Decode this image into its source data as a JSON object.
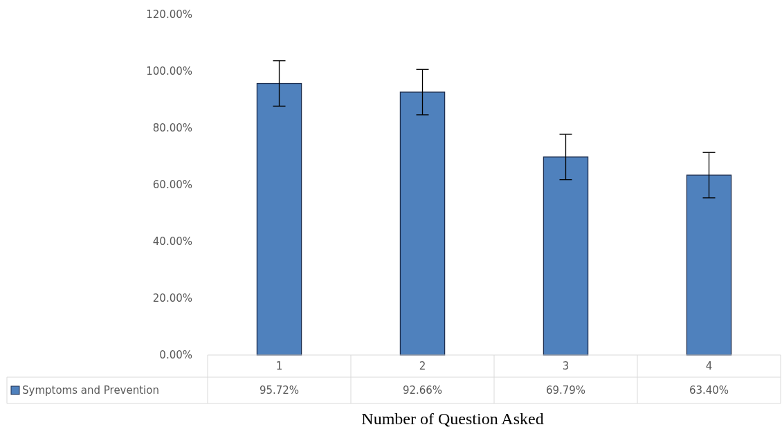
{
  "chart_data": {
    "type": "bar",
    "xlabel": "Number of Question Asked",
    "categories": [
      "1",
      "2",
      "3",
      "4"
    ],
    "series": [
      {
        "name": "Symptoms and Prevention",
        "color": "#4f81bd",
        "values": [
          95.72,
          92.66,
          69.79,
          63.4
        ],
        "errors": [
          8,
          8,
          8,
          8
        ],
        "value_labels": [
          "95.72%",
          "92.66%",
          "69.79%",
          "63.40%"
        ]
      }
    ],
    "ylim": [
      0,
      120
    ],
    "yticks": [
      {
        "value": 0,
        "label": "0.00%"
      },
      {
        "value": 20,
        "label": "20.00%"
      },
      {
        "value": 40,
        "label": "40.00%"
      },
      {
        "value": 60,
        "label": "60.00%"
      },
      {
        "value": 80,
        "label": "80.00%"
      },
      {
        "value": 100,
        "label": "100.00%"
      },
      {
        "value": 120,
        "label": "120.00%"
      }
    ],
    "legend": "bottom",
    "grid": false
  }
}
